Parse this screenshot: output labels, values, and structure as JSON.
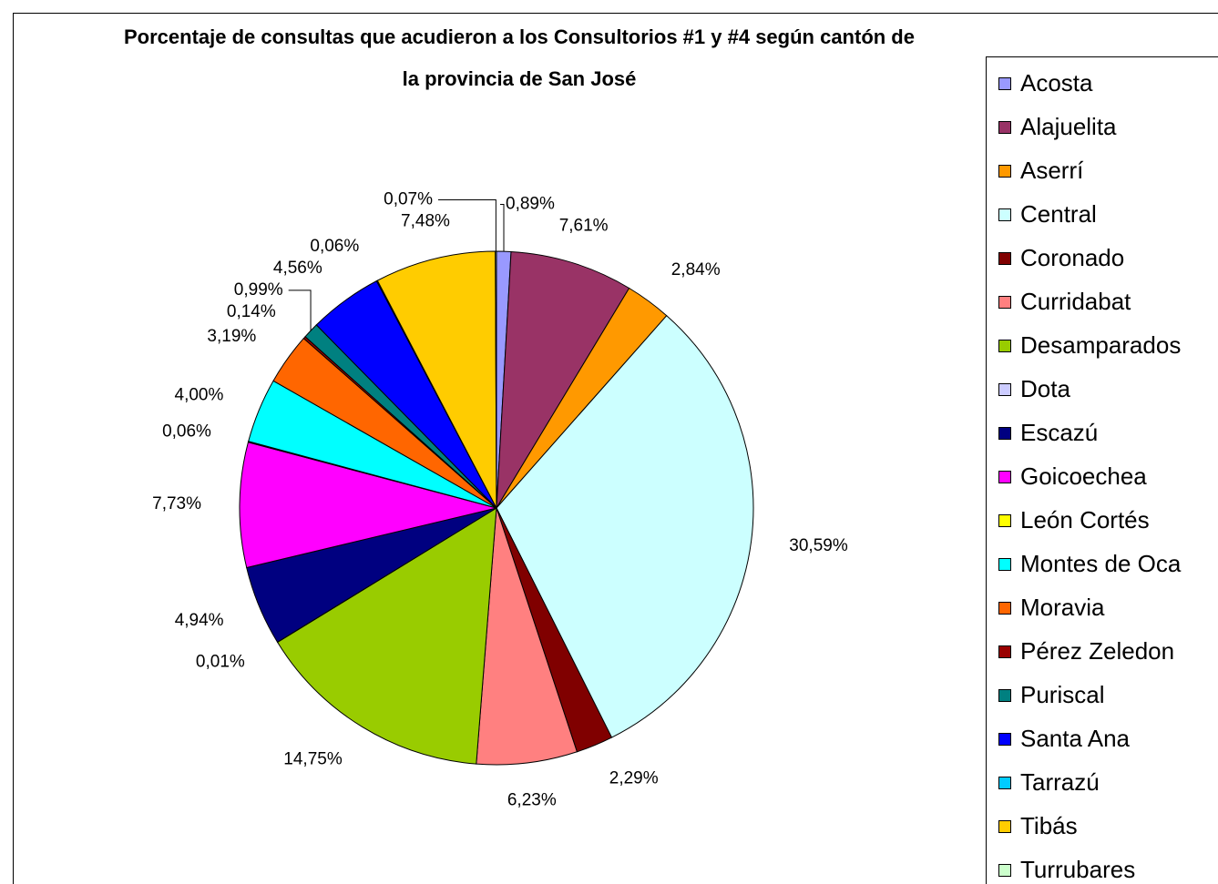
{
  "chart_data": {
    "type": "pie",
    "title": "Porcentaje de consultas que acudieron a los Consultorios #1 y #4 según cantón de la provincia de San José",
    "categories": [
      "Acosta",
      "Alajuelita",
      "Aserrí",
      "Central",
      "Coronado",
      "Curridabat",
      "Desamparados",
      "Dota",
      "Escazú",
      "Goicoechea",
      "León Cortés",
      "Montes de Oca",
      "Moravia",
      "Pérez Zeledon",
      "Puriscal",
      "Santa Ana",
      "Tarrazú",
      "Tibás",
      "Turrubares"
    ],
    "values": [
      0.89,
      7.61,
      2.84,
      30.59,
      2.29,
      6.23,
      14.75,
      0.01,
      4.94,
      7.73,
      0.06,
      4.0,
      3.19,
      0.14,
      0.99,
      4.56,
      0.06,
      7.48,
      0.07
    ],
    "value_labels": [
      "0,89%",
      "7,61%",
      "2,84%",
      "30,59%",
      "2,29%",
      "6,23%",
      "14,75%",
      "0,01%",
      "4,94%",
      "7,73%",
      "0,06%",
      "4,00%",
      "3,19%",
      "0,14%",
      "0,99%",
      "4,56%",
      "0,06%",
      "7,48%",
      "0,07%"
    ],
    "colors": [
      "#9999ff",
      "#993366",
      "#ff9900",
      "#ccffff",
      "#800000",
      "#ff8080",
      "#99cc00",
      "#ccccff",
      "#000080",
      "#ff00ff",
      "#ffff00",
      "#00ffff",
      "#ff6600",
      "#990000",
      "#008080",
      "#0000ff",
      "#00ccff",
      "#ffcc00",
      "#ccffcc"
    ],
    "legend": "right"
  }
}
